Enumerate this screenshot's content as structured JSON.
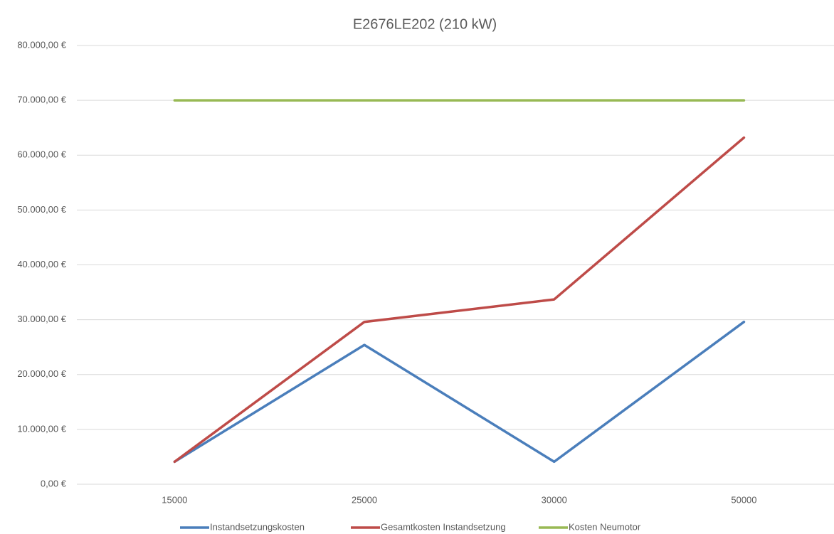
{
  "chart_data": {
    "type": "line",
    "title": "E2676LE202 (210 kW)",
    "categories": [
      "15000",
      "25000",
      "30000",
      "50000"
    ],
    "series": [
      {
        "name": "Instandsetzungskosten",
        "color": "#4a7ebb",
        "values": [
          4100,
          25400,
          4100,
          29600
        ]
      },
      {
        "name": "Gesamtkosten Instandsetzung",
        "color": "#be4b48",
        "values": [
          4100,
          29600,
          33700,
          63200
        ]
      },
      {
        "name": "Kosten Neumotor",
        "color": "#98b954",
        "values": [
          70000,
          70000,
          70000,
          70000
        ]
      }
    ],
    "ylim": [
      0,
      80000
    ],
    "yticks": [
      {
        "value": 0,
        "label": "0,00 €"
      },
      {
        "value": 10000,
        "label": "10.000,00 €"
      },
      {
        "value": 20000,
        "label": "20.000,00 €"
      },
      {
        "value": 30000,
        "label": "30.000,00 €"
      },
      {
        "value": 40000,
        "label": "40.000,00 €"
      },
      {
        "value": 50000,
        "label": "50.000,00 €"
      },
      {
        "value": 60000,
        "label": "60.000,00 €"
      },
      {
        "value": 70000,
        "label": "70.000,00 €"
      },
      {
        "value": 80000,
        "label": "80.000,00 €"
      }
    ],
    "grid": true,
    "legend": "bottom"
  }
}
